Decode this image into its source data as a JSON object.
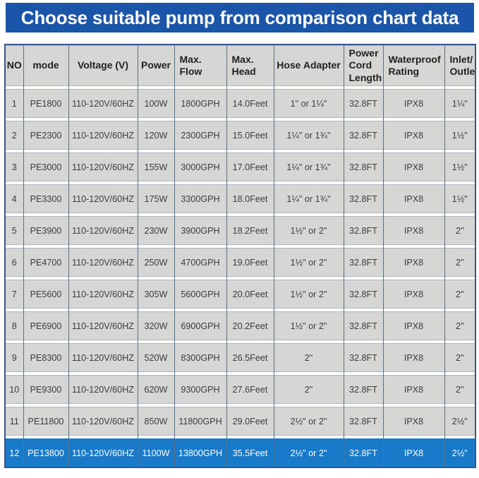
{
  "header": {
    "title": "Choose suitable pump from comparison chart data"
  },
  "colors": {
    "banner_blue": "#1b55a9",
    "highlight_row_blue": "#187ac8",
    "cell_gray": "#d6d7d5",
    "grid_vertical_line": "#5c7086",
    "grid_horizontal_line": "#aab6c1",
    "outer_border_blue": "#35598f",
    "cell_text": "#3c3c3c",
    "highlight_text": "#ffffff"
  },
  "table": {
    "columns": [
      "NO",
      "mode",
      "Voltage (V)",
      "Power",
      "Max.\nFlow",
      "Max.\nHead",
      "Hose Adapter",
      "Power\nCord\nLength",
      "Waterproof\nRating",
      "Inlet/\nOutlet"
    ],
    "highlight_index": 11,
    "rows": [
      [
        "1",
        "PE1800",
        "110-120V/60HZ",
        "100W",
        "1800GPH",
        "14.0Feet",
        "1\" or 1¼\"",
        "32.8FT",
        "IPX8",
        "1¼\""
      ],
      [
        "2",
        "PE2300",
        "110-120V/60HZ",
        "120W",
        "2300GPH",
        "15.0Feet",
        "1¼\" or 1¾\"",
        "32.8FT",
        "IPX8",
        "1½\""
      ],
      [
        "3",
        "PE3000",
        "110-120V/60HZ",
        "155W",
        "3000GPH",
        "17.0Feet",
        "1¼\" or 1¾\"",
        "32.8FT",
        "IPX8",
        "1½\""
      ],
      [
        "4",
        "PE3300",
        "110-120V/60HZ",
        "175W",
        "3300GPH",
        "18.0Feet",
        "1¼\" or 1¾\"",
        "32.8FT",
        "IPX8",
        "1½\""
      ],
      [
        "5",
        "PE3900",
        "110-120V/60HZ",
        "230W",
        "3900GPH",
        "18.2Feet",
        "1½\" or 2\"",
        "32.8FT",
        "IPX8",
        "2\""
      ],
      [
        "6",
        "PE4700",
        "110-120V/60HZ",
        "250W",
        "4700GPH",
        "19.0Feet",
        "1½\" or 2\"",
        "32.8FT",
        "IPX8",
        "2\""
      ],
      [
        "7",
        "PE5600",
        "110-120V/60HZ",
        "305W",
        "5600GPH",
        "20.0Feet",
        "1½\" or 2\"",
        "32.8FT",
        "IPX8",
        "2\""
      ],
      [
        "8",
        "PE6900",
        "110-120V/60HZ",
        "320W",
        "6900GPH",
        "20.2Feet",
        "1½\" or 2\"",
        "32.8FT",
        "IPX8",
        "2\""
      ],
      [
        "9",
        "PE8300",
        "110-120V/60HZ",
        "520W",
        "8300GPH",
        "26.5Feet",
        "2\"",
        "32.8FT",
        "IPX8",
        "2\""
      ],
      [
        "10",
        "PE9300",
        "110-120V/60HZ",
        "620W",
        "9300GPH",
        "27.6Feet",
        "2\"",
        "32.8FT",
        "IPX8",
        "2\""
      ],
      [
        "11",
        "PE11800",
        "110-120V/60HZ",
        "850W",
        "11800GPH",
        "29.0Feet",
        "2½\" or 2\"",
        "32.8FT",
        "IPX8",
        "2½\""
      ],
      [
        "12",
        "PE13800",
        "110-120V/60HZ",
        "1100W",
        "13800GPH",
        "35.5Feet",
        "2½\" or 2\"",
        "32.8FT",
        "IPX8",
        "2½\""
      ]
    ]
  }
}
